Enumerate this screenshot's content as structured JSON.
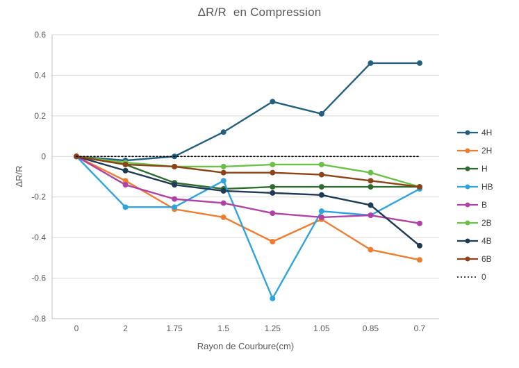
{
  "chart_data": {
    "type": "line",
    "title": "ΔR/R  en Compression",
    "xlabel": "Rayon de Courbure(cm)",
    "ylabel": "ΔR/R",
    "categories": [
      "0",
      "2",
      "1.75",
      "1.5",
      "1.25",
      "1.05",
      "0.85",
      "0.7"
    ],
    "ylim": [
      -0.8,
      0.6
    ],
    "ytick_values": [
      0.6,
      0.4,
      0.2,
      0,
      -0.2,
      -0.4,
      -0.6,
      -0.8
    ],
    "ytick_labels": [
      "0.6",
      "0.4",
      "0.2",
      "0",
      "-0.2",
      "-0.4",
      "-0.6",
      "-0.8"
    ],
    "grid": true,
    "legend_position": "right",
    "colors": {
      "gridline": "#D9D9D9",
      "axis_line": "#BFBFBF",
      "tick_label": "#595959",
      "legend_text": "#404040"
    },
    "series": [
      {
        "name": "4H",
        "color": "#255F7E",
        "style": "solid",
        "values": [
          0,
          -0.02,
          0,
          0.12,
          0.27,
          0.21,
          0.46,
          0.46
        ]
      },
      {
        "name": "2H",
        "color": "#ED7D31",
        "style": "solid",
        "values": [
          0,
          -0.12,
          -0.26,
          -0.3,
          -0.42,
          -0.31,
          -0.46,
          -0.51
        ]
      },
      {
        "name": "H",
        "color": "#2F6B2F",
        "style": "solid",
        "values": [
          0,
          -0.04,
          -0.13,
          -0.16,
          -0.15,
          -0.15,
          -0.15,
          -0.15
        ]
      },
      {
        "name": "HB",
        "color": "#2EA3DC",
        "style": "solid",
        "values": [
          0,
          -0.25,
          -0.25,
          -0.12,
          -0.7,
          -0.27,
          -0.29,
          -0.16
        ]
      },
      {
        "name": "B",
        "color": "#AF42A5",
        "style": "solid",
        "values": [
          0,
          -0.14,
          -0.21,
          -0.23,
          -0.28,
          -0.3,
          -0.29,
          -0.33
        ]
      },
      {
        "name": "2B",
        "color": "#6CC04A",
        "style": "solid",
        "values": [
          0,
          -0.03,
          -0.05,
          -0.05,
          -0.04,
          -0.04,
          -0.08,
          -0.15
        ]
      },
      {
        "name": "4B",
        "color": "#1F3A54",
        "style": "solid",
        "values": [
          0,
          -0.07,
          -0.14,
          -0.17,
          -0.18,
          -0.19,
          -0.24,
          -0.44
        ]
      },
      {
        "name": "6B",
        "color": "#8C4318",
        "style": "solid",
        "values": [
          0,
          -0.04,
          -0.05,
          -0.08,
          -0.08,
          -0.09,
          -0.12,
          -0.15
        ]
      },
      {
        "name": "0",
        "color": "#000000",
        "style": "dotted",
        "values": [
          0,
          0,
          0,
          0,
          0,
          0,
          0,
          0
        ]
      }
    ]
  }
}
